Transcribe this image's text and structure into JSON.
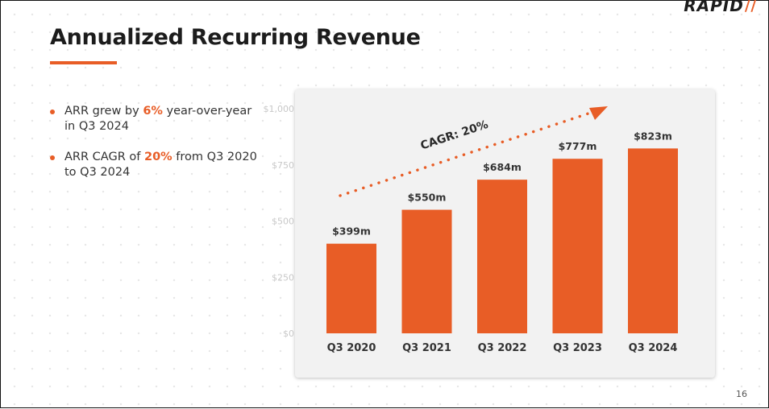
{
  "slide": {
    "logo_text": "RAPID",
    "logo_mark": "//",
    "title": "Annualized Recurring Revenue",
    "page_number": "16",
    "accent_color": "#e85d26"
  },
  "bullets": [
    {
      "pre": "ARR grew by ",
      "highlight": "6%",
      "post": " year-over-year in Q3 2024"
    },
    {
      "pre": "ARR CAGR of ",
      "highlight": "20%",
      "post": " from Q3 2020 to Q3 2024"
    }
  ],
  "chart_data": {
    "type": "bar",
    "categories": [
      "Q3 2020",
      "Q3 2021",
      "Q3 2022",
      "Q3 2023",
      "Q3 2024"
    ],
    "values": [
      399,
      550,
      684,
      777,
      823
    ],
    "data_labels": [
      "$399m",
      "$550m",
      "$684m",
      "$777m",
      "$823m"
    ],
    "y_ticks": [
      0,
      250,
      500,
      750,
      1000
    ],
    "y_tick_labels": [
      "$0",
      "$250",
      "$500",
      "$750",
      "$1,000"
    ],
    "ylim": [
      0,
      1000
    ],
    "bar_color": "#e85d26",
    "grid": false,
    "annotation": "CAGR: 20%"
  }
}
